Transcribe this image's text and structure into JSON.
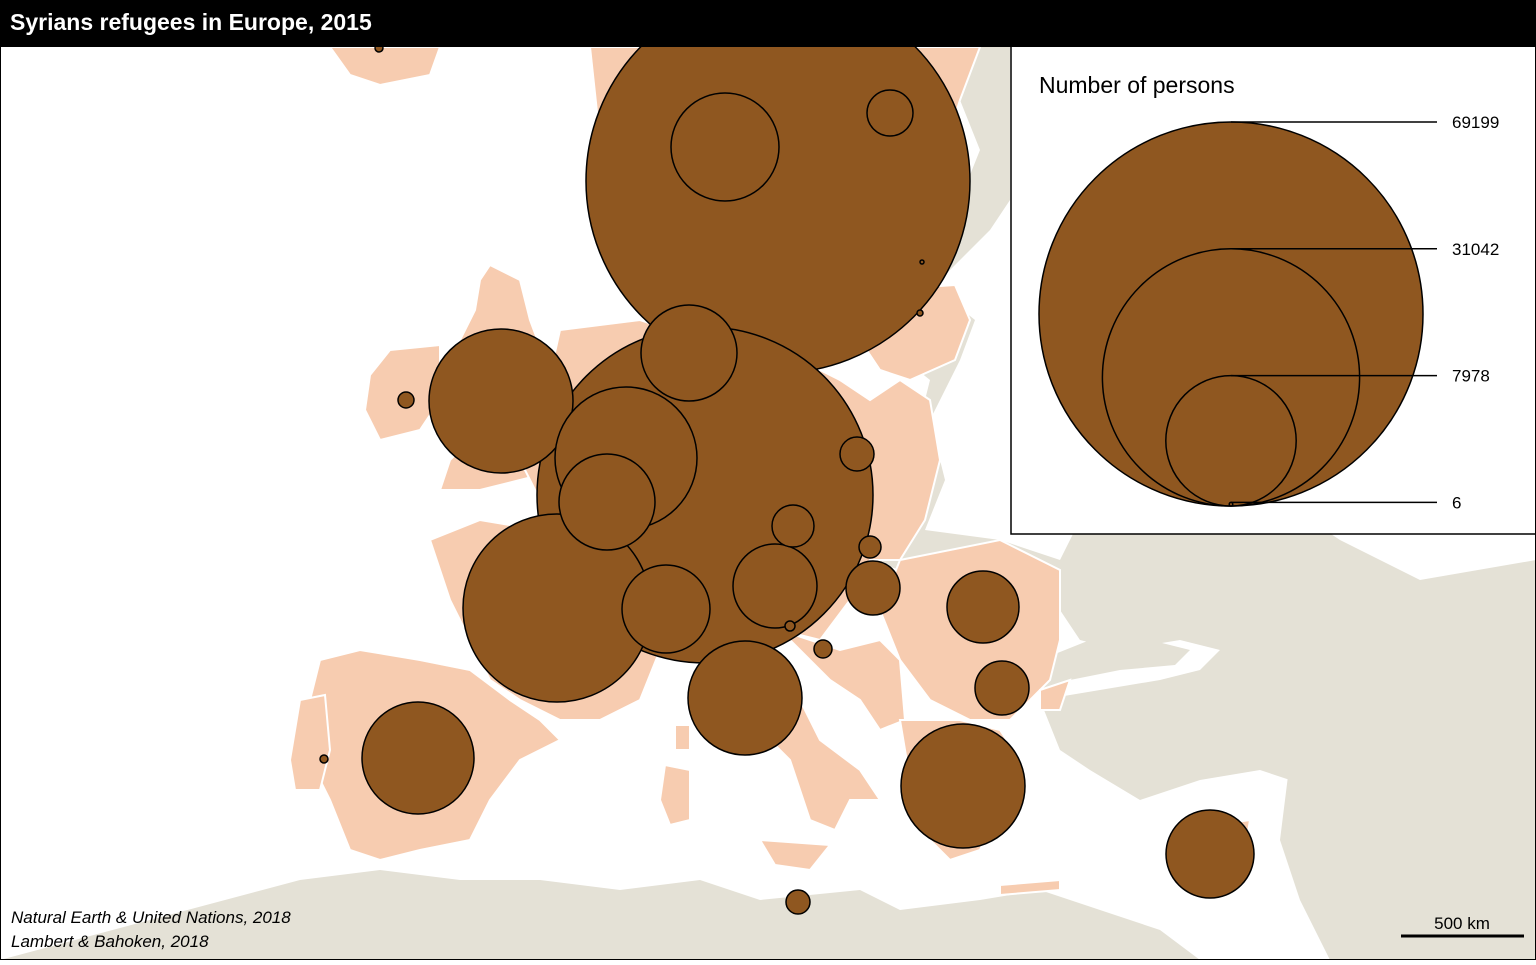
{
  "title": "Syrians refugees in Europe, 2015",
  "legend": {
    "title": "Number of persons",
    "values": [
      69199,
      31042,
      7978,
      6
    ],
    "labels": [
      "69199",
      "31042",
      "7978",
      "6"
    ]
  },
  "sources": [
    "Natural Earth & United Nations, 2018",
    "Lambert & Bahoken, 2018"
  ],
  "scale_bar": {
    "label": "500 km"
  },
  "colors": {
    "symbol": "#8f5720",
    "country": "#f7ccb0",
    "background_land": "#e4e1d6",
    "sea": "#ffffff",
    "title_bar": "#000000"
  }
}
